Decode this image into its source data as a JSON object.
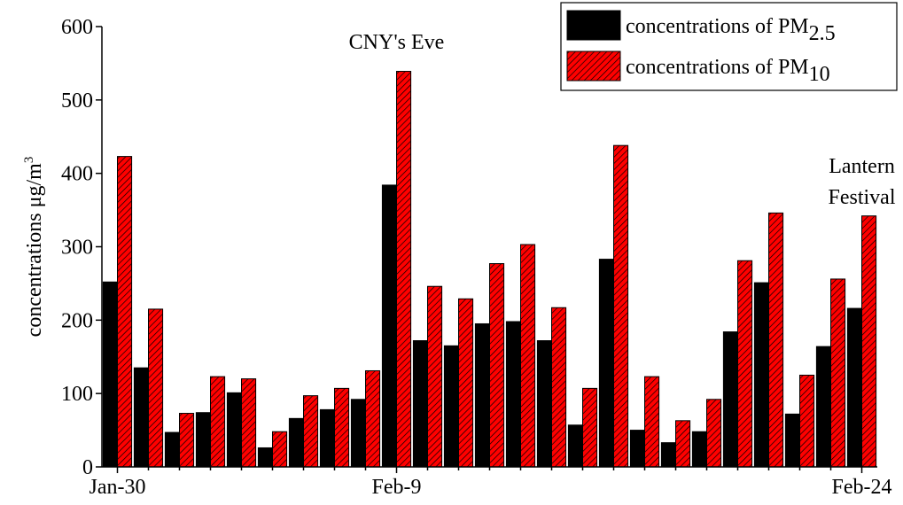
{
  "chart_data": {
    "type": "bar",
    "ylabel": "concentrations μg/m",
    "ylabel_sup": "3",
    "categories": [
      "Jan-30",
      null,
      null,
      null,
      null,
      null,
      null,
      null,
      null,
      "Feb-9",
      null,
      null,
      null,
      null,
      null,
      null,
      null,
      null,
      null,
      null,
      null,
      null,
      null,
      null,
      "Feb-24"
    ],
    "series": [
      {
        "name": "concentrations of PM",
        "name_sub": "2.5",
        "color": "#000000",
        "values": [
          252,
          135,
          47,
          74,
          101,
          26,
          66,
          78,
          92,
          384,
          172,
          165,
          195,
          198,
          172,
          57,
          283,
          50,
          33,
          48,
          184,
          251,
          72,
          164,
          216
        ]
      },
      {
        "name": "concentrations of PM",
        "name_sub": "10",
        "color": "#ff0000",
        "hatch": true,
        "values": [
          423,
          215,
          73,
          123,
          120,
          48,
          97,
          107,
          131,
          539,
          246,
          229,
          277,
          303,
          217,
          107,
          438,
          123,
          63,
          92,
          281,
          346,
          125,
          256,
          342
        ]
      }
    ],
    "annotations": [
      {
        "text": "CNY's Eve",
        "index": 9
      },
      {
        "text": "Lantern\nFestival",
        "index": 24
      }
    ],
    "ylim": [
      0,
      600
    ],
    "yticks": [
      0,
      100,
      200,
      300,
      400,
      500,
      600
    ],
    "grid": false,
    "legend": "top-right"
  }
}
